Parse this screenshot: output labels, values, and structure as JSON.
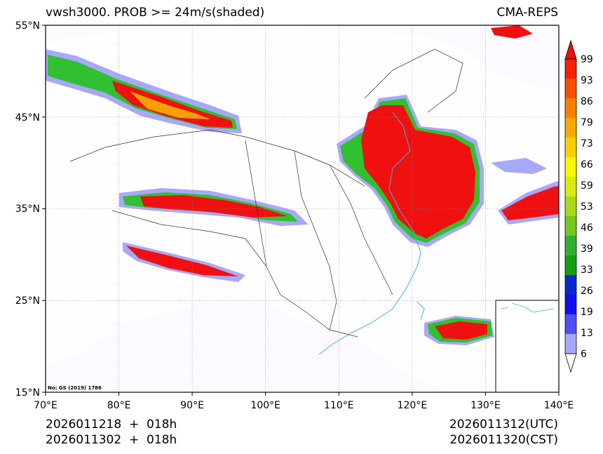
{
  "title_left": "vwsh3000. PROB >= 24m/s(shaded)",
  "title_right": "CMA-REPS",
  "footer": {
    "left_line1": "2026011218  +  018h",
    "left_line2": "2026011302  +  018h",
    "right_line1": "2026011312(UTC)",
    "right_line2": "2026011320(CST)"
  },
  "map_note": "No: GS (2019) 1786",
  "lat_labels": [
    "55°N",
    "45°N",
    "35°N",
    "25°N",
    "15°N"
  ],
  "lon_labels": [
    "70°E",
    "80°E",
    "90°E",
    "100°E",
    "110°E",
    "120°E",
    "130°E",
    "140°E"
  ],
  "colorbar": {
    "labels": [
      "99",
      "93",
      "86",
      "79",
      "73",
      "66",
      "59",
      "53",
      "46",
      "39",
      "33",
      "26",
      "19",
      "13",
      "6"
    ],
    "colors": [
      "#a8a8f8",
      "#5050f8",
      "#1010f0",
      "#0a2ad0",
      "#10a010",
      "#30b030",
      "#70c820",
      "#a8d818",
      "#d8ec10",
      "#f8f800",
      "#f8d000",
      "#f8a800",
      "#f88000",
      "#f85000",
      "#f82000"
    ],
    "top_color": "#e81010",
    "bottom_color": "#ffffff"
  },
  "colors": {
    "ocean": "#fcfaff",
    "prob_high": "#f01010",
    "prob_mid": "#f8a000",
    "prob_green": "#30c030",
    "prob_blue": "#2030e0",
    "prob_light": "#a8a8f8",
    "coast": "#40b0e0",
    "border": "#303030"
  }
}
